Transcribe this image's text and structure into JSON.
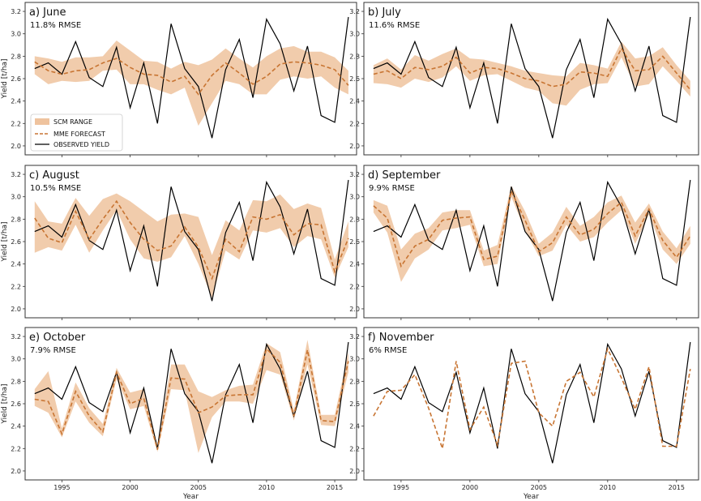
{
  "colors": {
    "band": "#efc39e",
    "forecast": "#c87533",
    "observed": "#000000"
  },
  "legend": {
    "band_label": "SCM RANGE",
    "forecast_label": "MME FORECAST",
    "observed_label": "OBSERVED YIELD"
  },
  "axis_labels": {
    "y": "Yield [t/ha]",
    "x": "Year"
  },
  "chart_data": {
    "type": "line",
    "x": [
      1993,
      1994,
      1995,
      1996,
      1997,
      1998,
      1999,
      2000,
      2001,
      2002,
      2003,
      2004,
      2005,
      2006,
      2007,
      2008,
      2009,
      2010,
      2011,
      2012,
      2013,
      2014,
      2015,
      2016
    ],
    "xticks": [
      1995,
      2000,
      2005,
      2010,
      2015
    ],
    "yticks": [
      "2.0",
      "2.2",
      "2.4",
      "2.6",
      "2.8",
      "3.0",
      "3.2"
    ],
    "ylim": [
      1.92,
      3.28
    ],
    "xlim": [
      1992.3,
      2016.6
    ],
    "observed": [
      2.69,
      2.74,
      2.64,
      2.93,
      2.61,
      2.53,
      2.88,
      2.34,
      2.74,
      2.2,
      3.09,
      2.69,
      2.53,
      2.07,
      2.68,
      2.95,
      2.43,
      3.13,
      2.91,
      2.49,
      2.89,
      2.27,
      2.21,
      3.15
    ],
    "panels": [
      {
        "title": "a) June",
        "subtitle": "11.8% RMSE",
        "forecast": [
          2.75,
          2.67,
          2.64,
          2.67,
          2.68,
          2.74,
          2.78,
          2.7,
          2.64,
          2.63,
          2.57,
          2.62,
          2.46,
          2.63,
          2.74,
          2.65,
          2.55,
          2.62,
          2.73,
          2.75,
          2.74,
          2.72,
          2.68,
          2.54
        ],
        "lower": [
          2.64,
          2.55,
          2.58,
          2.57,
          2.58,
          2.67,
          2.68,
          2.55,
          2.55,
          2.5,
          2.46,
          2.52,
          2.18,
          2.38,
          2.58,
          2.55,
          2.46,
          2.46,
          2.59,
          2.62,
          2.6,
          2.62,
          2.52,
          2.46
        ],
        "upper": [
          2.8,
          2.78,
          2.75,
          2.79,
          2.79,
          2.8,
          2.94,
          2.85,
          2.76,
          2.75,
          2.69,
          2.75,
          2.72,
          2.77,
          2.87,
          2.78,
          2.7,
          2.8,
          2.87,
          2.89,
          2.84,
          2.84,
          2.79,
          2.67
        ]
      },
      {
        "title": "b) July",
        "subtitle": "11.6% RMSE",
        "forecast": [
          2.64,
          2.67,
          2.6,
          2.7,
          2.68,
          2.71,
          2.79,
          2.65,
          2.7,
          2.69,
          2.65,
          2.6,
          2.58,
          2.53,
          2.55,
          2.66,
          2.65,
          2.62,
          2.87,
          2.67,
          2.68,
          2.8,
          2.65,
          2.5
        ],
        "lower": [
          2.56,
          2.55,
          2.52,
          2.6,
          2.57,
          2.61,
          2.71,
          2.58,
          2.63,
          2.64,
          2.58,
          2.52,
          2.49,
          2.38,
          2.36,
          2.5,
          2.55,
          2.56,
          2.79,
          2.53,
          2.55,
          2.71,
          2.58,
          2.44
        ],
        "upper": [
          2.72,
          2.78,
          2.68,
          2.81,
          2.76,
          2.82,
          2.87,
          2.78,
          2.77,
          2.74,
          2.71,
          2.67,
          2.65,
          2.63,
          2.62,
          2.74,
          2.72,
          2.69,
          2.93,
          2.78,
          2.8,
          2.88,
          2.72,
          2.58
        ]
      },
      {
        "title": "c) August",
        "subtitle": "10.5% RMSE",
        "forecast": [
          2.81,
          2.63,
          2.59,
          2.87,
          2.62,
          2.8,
          2.96,
          2.77,
          2.62,
          2.52,
          2.56,
          2.73,
          2.55,
          2.27,
          2.62,
          2.51,
          2.82,
          2.8,
          2.84,
          2.66,
          2.76,
          2.75,
          2.33,
          2.63
        ],
        "lower": [
          2.5,
          2.55,
          2.52,
          2.75,
          2.5,
          2.7,
          2.88,
          2.62,
          2.45,
          2.42,
          2.46,
          2.65,
          2.4,
          2.1,
          2.52,
          2.44,
          2.7,
          2.68,
          2.72,
          2.55,
          2.65,
          2.62,
          2.28,
          2.55
        ],
        "upper": [
          2.96,
          2.78,
          2.76,
          2.99,
          2.83,
          2.98,
          3.03,
          2.96,
          2.87,
          2.78,
          2.84,
          2.85,
          2.82,
          2.48,
          2.79,
          2.7,
          2.97,
          2.96,
          3.02,
          2.89,
          2.94,
          2.9,
          2.44,
          2.78
        ]
      },
      {
        "title": "d) September",
        "subtitle": "9.9% RMSE",
        "forecast": [
          2.92,
          2.81,
          2.38,
          2.56,
          2.62,
          2.79,
          2.81,
          2.82,
          2.44,
          2.47,
          3.05,
          2.79,
          2.51,
          2.59,
          2.82,
          2.66,
          2.71,
          2.85,
          2.95,
          2.65,
          2.89,
          2.61,
          2.46,
          2.65
        ],
        "lower": [
          2.86,
          2.68,
          2.24,
          2.45,
          2.53,
          2.7,
          2.72,
          2.75,
          2.38,
          2.4,
          3.0,
          2.7,
          2.47,
          2.52,
          2.75,
          2.6,
          2.64,
          2.77,
          2.88,
          2.58,
          2.84,
          2.53,
          2.4,
          2.58
        ],
        "upper": [
          2.97,
          2.92,
          2.53,
          2.67,
          2.72,
          2.86,
          2.88,
          2.88,
          2.52,
          2.57,
          3.1,
          2.87,
          2.58,
          2.68,
          2.91,
          2.74,
          2.82,
          2.95,
          3.01,
          2.77,
          2.94,
          2.69,
          2.54,
          2.74
        ]
      },
      {
        "title": "e) October",
        "subtitle": "7.9% RMSE",
        "forecast": [
          2.64,
          2.62,
          2.33,
          2.71,
          2.49,
          2.35,
          2.88,
          2.6,
          2.65,
          2.19,
          2.83,
          2.82,
          2.52,
          2.57,
          2.67,
          2.68,
          2.68,
          3.09,
          2.97,
          2.49,
          3.08,
          2.45,
          2.44,
          2.98
        ],
        "lower": [
          2.58,
          2.52,
          2.3,
          2.62,
          2.43,
          2.31,
          2.82,
          2.55,
          2.58,
          2.17,
          2.73,
          2.72,
          2.16,
          2.48,
          2.62,
          2.62,
          2.6,
          2.9,
          2.86,
          2.45,
          2.95,
          2.41,
          2.4,
          2.88
        ],
        "upper": [
          2.73,
          2.89,
          2.38,
          2.79,
          2.56,
          2.42,
          2.92,
          2.7,
          2.73,
          2.23,
          2.95,
          2.95,
          2.71,
          2.66,
          2.72,
          2.76,
          2.77,
          3.14,
          3.06,
          2.54,
          3.17,
          2.5,
          2.5,
          3.06
        ]
      },
      {
        "title": "f) November",
        "subtitle": "6% RMSE",
        "forecast": [
          2.49,
          2.71,
          2.72,
          2.86,
          2.56,
          2.2,
          2.98,
          2.37,
          2.57,
          2.23,
          2.96,
          2.98,
          2.52,
          2.4,
          2.8,
          2.88,
          2.66,
          3.09,
          2.83,
          2.55,
          2.93,
          2.22,
          2.22,
          2.91
        ],
        "lower": null,
        "upper": null
      }
    ]
  }
}
